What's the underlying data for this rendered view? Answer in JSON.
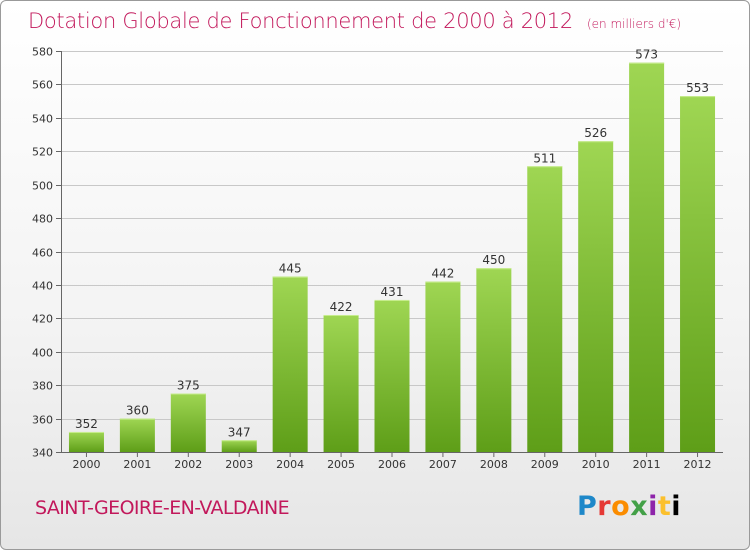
{
  "header": {
    "title": "Dotation Globale de Fonctionnement de 2000 à 2012",
    "unit": "(en milliers d'€)"
  },
  "footer": {
    "commune": "SAINT-GEOIRE-EN-VALDAINE",
    "logo_letters": [
      "P",
      "r",
      "o",
      "x",
      "i",
      "t",
      "i"
    ]
  },
  "colors": {
    "title": "#c2185b",
    "bar_top": "#9fd653",
    "bar_bottom": "#5e9e18",
    "grid": "#c8c8c8"
  },
  "chart_data": {
    "type": "bar",
    "categories": [
      "2000",
      "2001",
      "2002",
      "2003",
      "2004",
      "2005",
      "2006",
      "2007",
      "2008",
      "2009",
      "2010",
      "2011",
      "2012"
    ],
    "values": [
      352,
      360,
      375,
      347,
      445,
      422,
      431,
      442,
      450,
      511,
      526,
      573,
      553
    ],
    "title": "Dotation Globale de Fonctionnement de 2000 à 2012",
    "ylim": [
      340,
      580
    ],
    "yticks": [
      340,
      360,
      380,
      400,
      420,
      440,
      460,
      480,
      500,
      520,
      540,
      560,
      580
    ],
    "grid": true,
    "data_labels": true
  }
}
